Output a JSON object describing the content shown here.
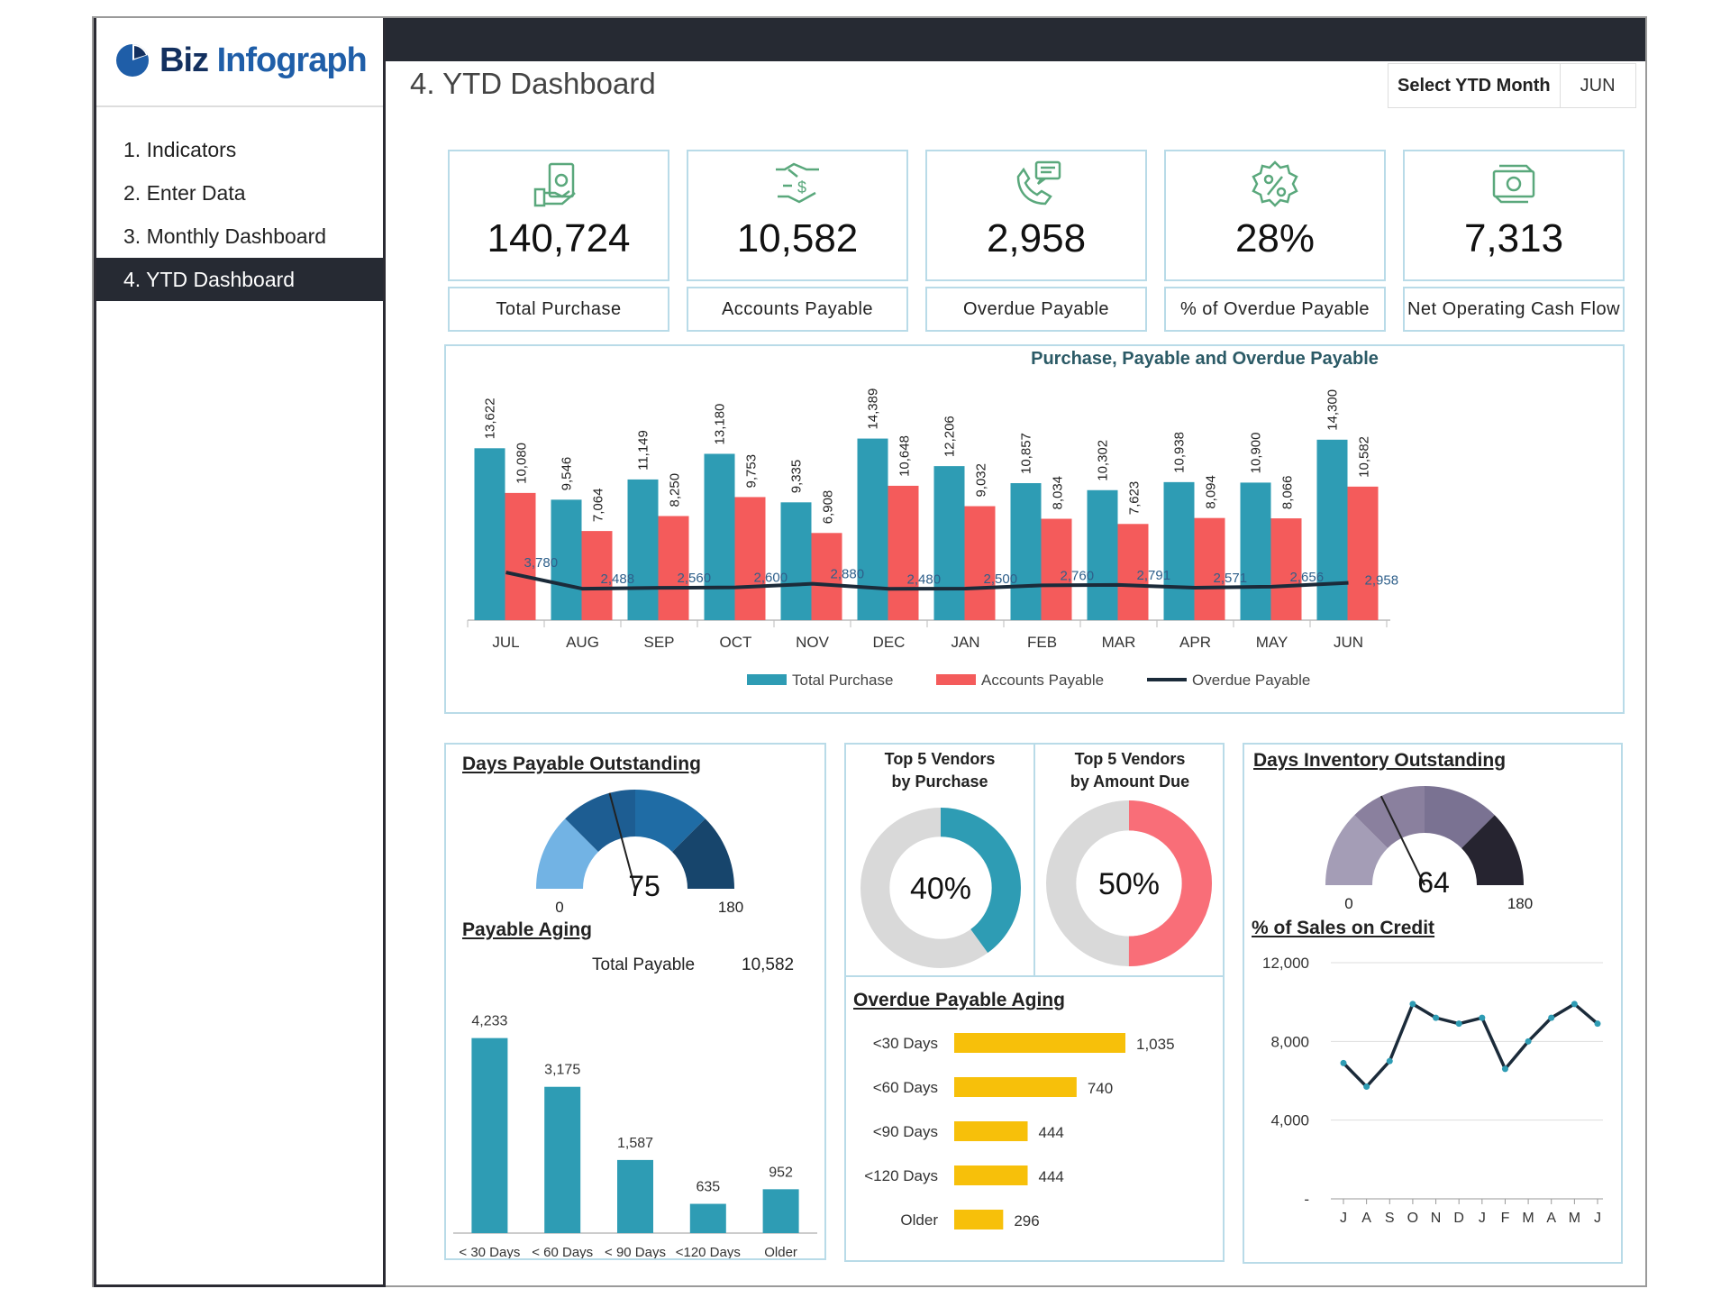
{
  "brand": {
    "part1": "Biz",
    "part2": "Infograph"
  },
  "nav": [
    {
      "label": "1. Indicators"
    },
    {
      "label": "2. Enter Data"
    },
    {
      "label": "3. Monthly Dashboard"
    },
    {
      "label": "4. YTD Dashboard"
    }
  ],
  "page": {
    "title": "4. YTD Dashboard",
    "ytd_label": "Select YTD Month",
    "ytd_value": "JUN"
  },
  "kpis": [
    {
      "value": "140,724",
      "label": "Total Purchase",
      "icon": "cash-hand-icon"
    },
    {
      "value": "10,582",
      "label": "Accounts Payable",
      "icon": "dollar-handshake-icon"
    },
    {
      "value": "2,958",
      "label": "Overdue Payable",
      "icon": "phone-chat-icon"
    },
    {
      "value": "28%",
      "label": "% of Overdue Payable",
      "icon": "percent-badge-icon"
    },
    {
      "value": "7,313",
      "label": "Net Operating Cash Flow",
      "icon": "cash-cycle-icon"
    }
  ],
  "chart_data": [
    {
      "type": "bar",
      "title": "Purchase, Payable and Overdue Payable",
      "categories": [
        "JUL",
        "AUG",
        "SEP",
        "OCT",
        "NOV",
        "DEC",
        "JAN",
        "FEB",
        "MAR",
        "APR",
        "MAY",
        "JUN"
      ],
      "series": [
        {
          "name": "Total Purchase",
          "kind": "bar",
          "color": "#2e9cb4",
          "values": [
            13622,
            9546,
            11149,
            13180,
            9335,
            14389,
            12206,
            10857,
            10302,
            10938,
            10900,
            14300
          ],
          "labels": [
            "13,622",
            "9,546",
            "11,149",
            "13,180",
            "9,335",
            "14,389",
            "12,206",
            "10,857",
            "10,302",
            "10,938",
            "10,900",
            "14,300"
          ]
        },
        {
          "name": "Accounts Payable",
          "kind": "bar",
          "color": "#f45b5b",
          "values": [
            10080,
            7064,
            8250,
            9753,
            6908,
            10648,
            9032,
            8034,
            7623,
            8094,
            8066,
            10582
          ],
          "labels": [
            "10,080",
            "7,064",
            "8,250",
            "9,753",
            "6,908",
            "10,648",
            "9,032",
            "8,034",
            "7,623",
            "8,094",
            "8,066",
            "10,582"
          ]
        },
        {
          "name": "Overdue Payable",
          "kind": "line",
          "color": "#1b2b3a",
          "values": [
            3780,
            2488,
            2560,
            2600,
            2880,
            2480,
            2500,
            2760,
            2791,
            2571,
            2656,
            2958
          ],
          "labels": [
            "3,780",
            "2,488",
            "2,560",
            "2,600",
            "2,880",
            "2,480",
            "2,500",
            "2,760",
            "2,791",
            "2,571",
            "2,656",
            "2,958"
          ]
        }
      ],
      "ylim": [
        0,
        16000
      ]
    },
    {
      "type": "gauge",
      "title": "Days Payable Outstanding",
      "value": 75,
      "min": 0,
      "max": 180,
      "min_label": "0",
      "max_label": "180",
      "value_label": "75"
    },
    {
      "type": "bar",
      "title": "Payable Aging",
      "categories": [
        "< 30 Days",
        "< 60 Days",
        "< 90 Days",
        "<120 Days",
        "Older"
      ],
      "values": [
        4233,
        3175,
        1587,
        635,
        952
      ],
      "labels": [
        "4,233",
        "3,175",
        "1,587",
        "635",
        "952"
      ],
      "color": "#2e9cb4",
      "ylim": [
        0,
        4500
      ]
    },
    {
      "type": "pie",
      "title": "Top 5 Vendors by Purchase",
      "value": 40,
      "label": "40%",
      "color": "#2e9cb4"
    },
    {
      "type": "pie",
      "title": "Top 5 Vendors by Amount Due",
      "value": 50,
      "label": "50%",
      "color": "#f96e78"
    },
    {
      "type": "bar",
      "title": "Overdue Payable Aging",
      "orientation": "horizontal",
      "categories": [
        "<30 Days",
        "<60 Days",
        "<90 Days",
        "<120 Days",
        "Older"
      ],
      "values": [
        1035,
        740,
        444,
        444,
        296
      ],
      "labels": [
        "1,035",
        "740",
        "444",
        "444",
        "296"
      ],
      "color": "#f7c00a"
    },
    {
      "type": "gauge",
      "title": "Days Inventory Outstanding",
      "value": 64,
      "min": 0,
      "max": 180,
      "min_label": "0",
      "max_label": "180",
      "value_label": "64"
    },
    {
      "type": "line",
      "title": "% of Sales on Credit",
      "categories": [
        "J",
        "A",
        "S",
        "O",
        "N",
        "D",
        "J",
        "F",
        "M",
        "A",
        "M",
        "J"
      ],
      "values": [
        6900,
        5700,
        7000,
        9900,
        9200,
        8900,
        9200,
        6600,
        8000,
        9200,
        9900,
        8900
      ],
      "yticks": [
        "12,000",
        "8,000",
        "4,000",
        "-"
      ],
      "ylim": [
        0,
        12000
      ],
      "color": "#1b2b3a"
    }
  ],
  "payable_aging": {
    "total_label": "Total Payable",
    "total_value": "10,582"
  },
  "top5": {
    "purchase_line1": "Top 5 Vendors",
    "purchase_line2": "by Purchase",
    "due_line1": "Top 5 Vendors",
    "due_line2": "by Amount Due"
  }
}
